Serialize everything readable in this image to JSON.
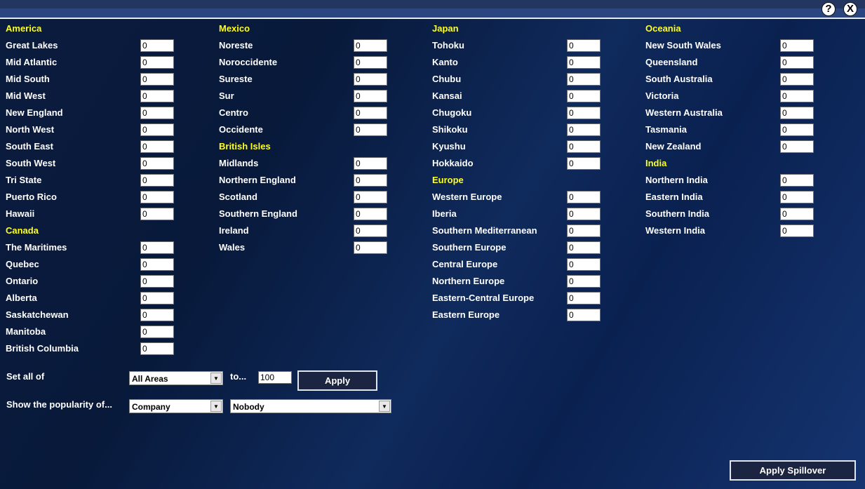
{
  "window": {
    "help_icon": "question-mark-circle",
    "close_icon": "x-circle",
    "help_glyph": "?",
    "close_glyph": "X"
  },
  "columns": [
    {
      "sections": [
        {
          "header": "America",
          "items": [
            {
              "label": "Great Lakes",
              "value": "0"
            },
            {
              "label": "Mid Atlantic",
              "value": "0"
            },
            {
              "label": "Mid South",
              "value": "0"
            },
            {
              "label": "Mid West",
              "value": "0"
            },
            {
              "label": "New England",
              "value": "0"
            },
            {
              "label": "North West",
              "value": "0"
            },
            {
              "label": "South East",
              "value": "0"
            },
            {
              "label": "South West",
              "value": "0"
            },
            {
              "label": "Tri State",
              "value": "0"
            },
            {
              "label": "Puerto Rico",
              "value": "0"
            },
            {
              "label": "Hawaii",
              "value": "0"
            }
          ]
        },
        {
          "header": "Canada",
          "items": [
            {
              "label": "The Maritimes",
              "value": "0"
            },
            {
              "label": "Quebec",
              "value": "0"
            },
            {
              "label": "Ontario",
              "value": "0"
            },
            {
              "label": "Alberta",
              "value": "0"
            },
            {
              "label": "Saskatchewan",
              "value": "0"
            },
            {
              "label": "Manitoba",
              "value": "0"
            },
            {
              "label": "British Columbia",
              "value": "0"
            }
          ]
        }
      ]
    },
    {
      "sections": [
        {
          "header": "Mexico",
          "items": [
            {
              "label": "Noreste",
              "value": "0"
            },
            {
              "label": "Noroccidente",
              "value": "0"
            },
            {
              "label": "Sureste",
              "value": "0"
            },
            {
              "label": "Sur",
              "value": "0"
            },
            {
              "label": "Centro",
              "value": "0"
            },
            {
              "label": "Occidente",
              "value": "0"
            }
          ]
        },
        {
          "header": "British Isles",
          "items": [
            {
              "label": "Midlands",
              "value": "0"
            },
            {
              "label": "Northern England",
              "value": "0"
            },
            {
              "label": "Scotland",
              "value": "0"
            },
            {
              "label": "Southern England",
              "value": "0"
            },
            {
              "label": "Ireland",
              "value": "0"
            },
            {
              "label": "Wales",
              "value": "0"
            }
          ]
        }
      ]
    },
    {
      "sections": [
        {
          "header": "Japan",
          "items": [
            {
              "label": "Tohoku",
              "value": "0"
            },
            {
              "label": "Kanto",
              "value": "0"
            },
            {
              "label": "Chubu",
              "value": "0"
            },
            {
              "label": "Kansai",
              "value": "0"
            },
            {
              "label": "Chugoku",
              "value": "0"
            },
            {
              "label": "Shikoku",
              "value": "0"
            },
            {
              "label": "Kyushu",
              "value": "0"
            },
            {
              "label": "Hokkaido",
              "value": "0"
            }
          ]
        },
        {
          "header": "Europe",
          "items": [
            {
              "label": "Western Europe",
              "value": "0"
            },
            {
              "label": "Iberia",
              "value": "0"
            },
            {
              "label": "Southern Mediterranean",
              "value": "0"
            },
            {
              "label": "Southern Europe",
              "value": "0"
            },
            {
              "label": "Central Europe",
              "value": "0"
            },
            {
              "label": "Northern Europe",
              "value": "0"
            },
            {
              "label": "Eastern-Central Europe",
              "value": "0"
            },
            {
              "label": "Eastern Europe",
              "value": "0"
            }
          ]
        }
      ]
    },
    {
      "sections": [
        {
          "header": "Oceania",
          "items": [
            {
              "label": "New South Wales",
              "value": "0"
            },
            {
              "label": "Queensland",
              "value": "0"
            },
            {
              "label": "South Australia",
              "value": "0"
            },
            {
              "label": "Victoria",
              "value": "0"
            },
            {
              "label": "Western Australia",
              "value": "0"
            },
            {
              "label": "Tasmania",
              "value": "0"
            },
            {
              "label": "New Zealand",
              "value": "0"
            }
          ]
        },
        {
          "header": "India",
          "items": [
            {
              "label": "Northern India",
              "value": "0"
            },
            {
              "label": "Eastern India",
              "value": "0"
            },
            {
              "label": "Southern India",
              "value": "0"
            },
            {
              "label": "Western India",
              "value": "0"
            }
          ]
        }
      ]
    }
  ],
  "set_all": {
    "label": "Set all of",
    "area": "All Areas",
    "to_label": "to...",
    "value": "100",
    "apply": "Apply"
  },
  "popularity": {
    "label": "Show the popularity of...",
    "type": "Company",
    "target": "Nobody"
  },
  "apply_spillover": "Apply Spillover",
  "colors": {
    "header": "#ffff1e",
    "background": "#0b1c3f",
    "titlebar": "#2a4580"
  }
}
